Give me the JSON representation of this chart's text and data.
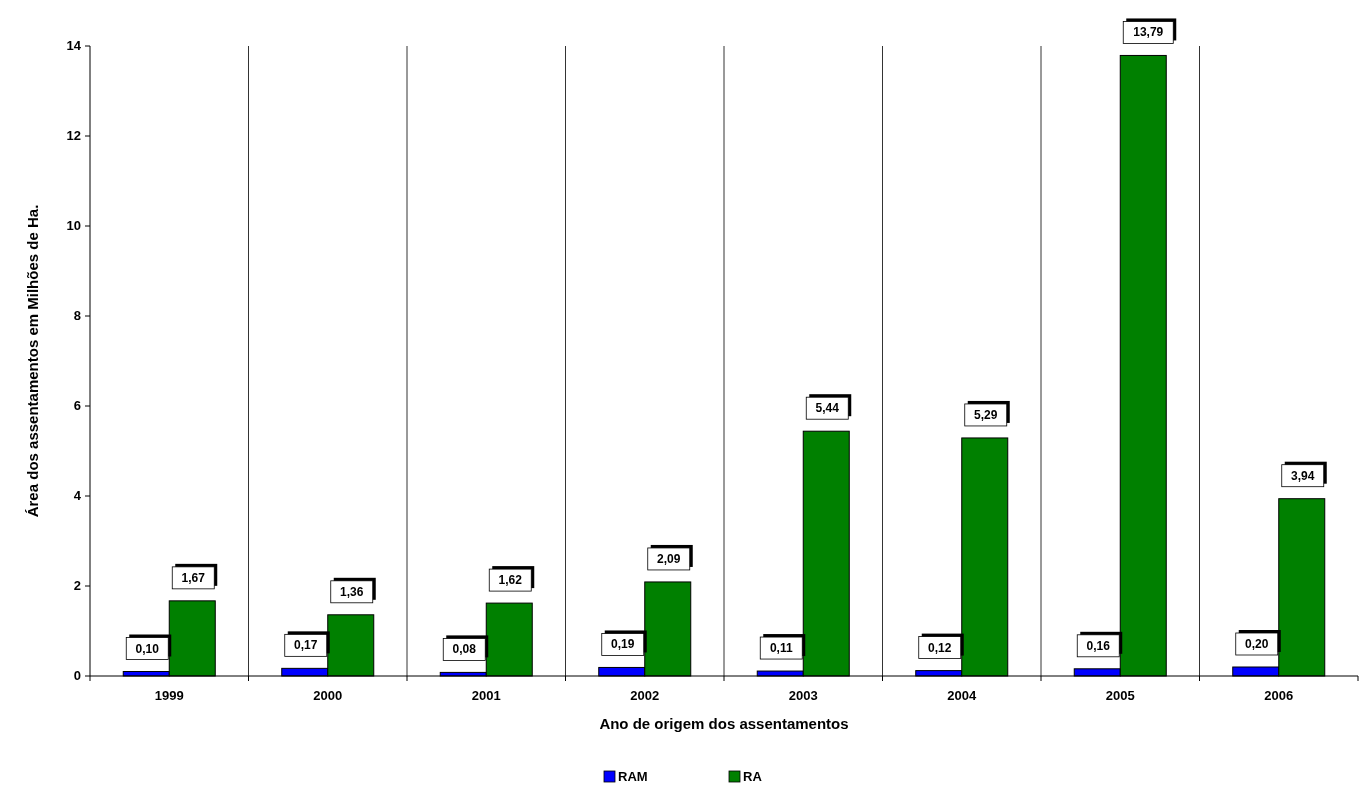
{
  "chart_data": {
    "type": "bar",
    "xlabel": "Ano de origem dos assentamentos",
    "ylabel": "Área dos assentamentos em Milhões de Ha.",
    "categories": [
      "1999",
      "2000",
      "2001",
      "2002",
      "2003",
      "2004",
      "2005",
      "2006"
    ],
    "series": [
      {
        "name": "RAM",
        "color": "#0000ff",
        "values": [
          0.1,
          0.17,
          0.08,
          0.19,
          0.11,
          0.12,
          0.16,
          0.2
        ],
        "value_labels": [
          "0,10",
          "0,17",
          "0,08",
          "0,19",
          "0,11",
          "0,12",
          "0,16",
          "0,20"
        ]
      },
      {
        "name": "RA",
        "color": "#008000",
        "values": [
          1.67,
          1.36,
          1.62,
          2.09,
          5.44,
          5.29,
          13.79,
          3.94
        ],
        "value_labels": [
          "1,67",
          "1,36",
          "1,62",
          "2,09",
          "5,44",
          "5,29",
          "13,79",
          "3,94"
        ]
      }
    ],
    "ylim": [
      0,
      14
    ],
    "yticks": [
      0,
      2,
      4,
      6,
      8,
      10,
      12,
      14
    ],
    "grid": "x",
    "legend": "bottom"
  }
}
